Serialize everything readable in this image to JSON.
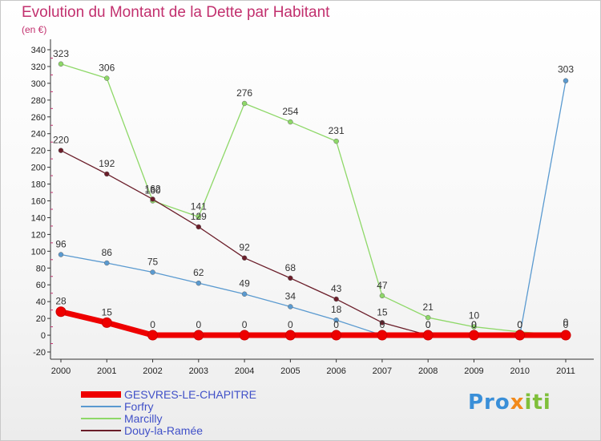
{
  "chart_data": {
    "type": "line",
    "title": "Evolution du Montant de la Dette par Habitant",
    "subtitle": "(en €)",
    "x": [
      "2000",
      "2001",
      "2002",
      "2003",
      "2004",
      "2005",
      "2006",
      "2007",
      "2008",
      "2009",
      "2010",
      "2011"
    ],
    "ylim": [
      -20,
      340
    ],
    "yticks": [
      -20,
      0,
      20,
      40,
      60,
      80,
      100,
      120,
      140,
      160,
      180,
      200,
      220,
      240,
      260,
      280,
      300,
      320,
      340
    ],
    "grid": false,
    "legend_position": "bottom-left",
    "series": [
      {
        "name": "GESVRES-LE-CHAPITRE",
        "color": "#ee0000",
        "values": [
          28,
          15,
          0,
          0,
          0,
          0,
          0,
          0,
          0,
          0,
          0,
          0
        ],
        "labels": [
          "28",
          "15",
          "0",
          "0",
          "0",
          "0",
          "0",
          "",
          "",
          "",
          "",
          ""
        ]
      },
      {
        "name": "Forfry",
        "color": "#5a9ad0",
        "values": [
          96,
          86,
          75,
          62,
          49,
          34,
          18,
          0,
          0,
          0,
          0,
          303
        ],
        "labels": [
          "96",
          "86",
          "75",
          "62",
          "49",
          "34",
          "18",
          "0",
          "0",
          "0",
          "0",
          "303"
        ]
      },
      {
        "name": "Marcilly",
        "color": "#8ed868",
        "values": [
          323,
          306,
          160,
          141,
          276,
          254,
          231,
          47,
          21,
          10,
          4,
          0
        ],
        "labels": [
          "323",
          "306",
          "160",
          "141",
          "276",
          "254",
          "231",
          "47",
          "21",
          "10",
          "",
          "0"
        ]
      },
      {
        "name": "Douy-la-Ramée",
        "color": "#6b1e2a",
        "values": [
          220,
          192,
          162,
          129,
          92,
          68,
          43,
          15,
          0,
          0,
          0,
          0
        ],
        "labels": [
          "220",
          "192",
          "162",
          "129",
          "92",
          "68",
          "43",
          "15",
          "0",
          "0",
          "0",
          "0"
        ]
      }
    ]
  },
  "logo": {
    "p1": "Pro",
    "p2": "x",
    "p3": "iti"
  }
}
